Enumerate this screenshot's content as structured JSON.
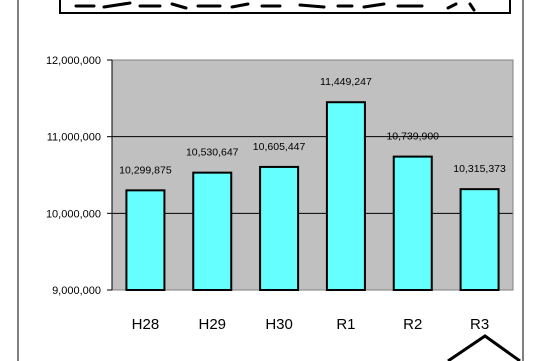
{
  "chart_data": {
    "type": "bar",
    "title": "",
    "xlabel": "",
    "ylabel": "",
    "categories": [
      "H28",
      "H29",
      "H30",
      "R1",
      "R2",
      "R3"
    ],
    "values": [
      10299875,
      10530647,
      10605447,
      11449247,
      10739900,
      10315373
    ],
    "value_labels": [
      "10,299,875",
      "10,530,647",
      "10,605,447",
      "11,449,247",
      "10,739,900",
      "10,315,373"
    ],
    "y_ticks": [
      9000000,
      10000000,
      11000000,
      12000000
    ],
    "y_tick_labels": [
      "9,000,000",
      "10,000,000",
      "11,000,000",
      "12,000,000"
    ],
    "ylim": [
      9000000,
      12000000
    ],
    "grid": true,
    "legend": "none",
    "colors": {
      "bar_fill": "#66FFFF",
      "bar_stroke": "#000000",
      "plot_background": "#C0C0C0",
      "gridline": "#000000",
      "frame": "#000000"
    }
  }
}
